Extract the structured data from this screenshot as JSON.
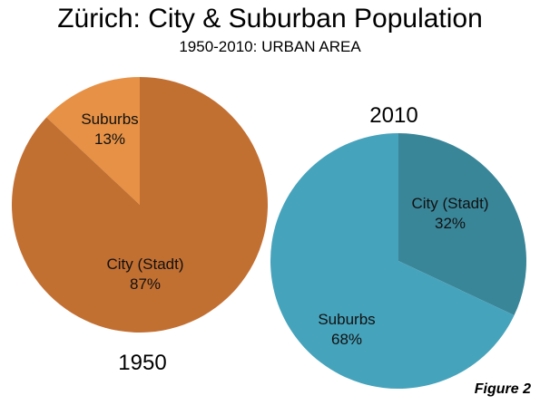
{
  "header": {
    "title": "Zürich: City & Suburban Population",
    "subtitle": "1950-2010: URBAN AREA"
  },
  "figure_label": "Figure 2",
  "chart_data": [
    {
      "type": "pie",
      "title": "1950",
      "slices": [
        {
          "name": "Suburbs",
          "value": 13,
          "label": "13%",
          "color": "#E69145"
        },
        {
          "name": "City (Stadt)",
          "value": 87,
          "label": "87%",
          "color": "#C26F32"
        }
      ]
    },
    {
      "type": "pie",
      "title": "2010",
      "slices": [
        {
          "name": "City (Stadt)",
          "value": 32,
          "label": "32%",
          "color": "#3A8699"
        },
        {
          "name": "Suburbs",
          "value": 68,
          "label": "68%",
          "color": "#46A3BC"
        }
      ]
    }
  ]
}
